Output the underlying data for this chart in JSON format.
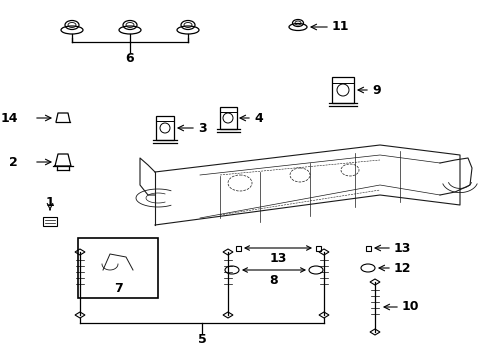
{
  "bg_color": "#ffffff",
  "line_color": "#000000",
  "fig_width": 4.9,
  "fig_height": 3.6,
  "dpi": 100,
  "frame_color": "#2a2a2a",
  "part_lw": 0.8
}
